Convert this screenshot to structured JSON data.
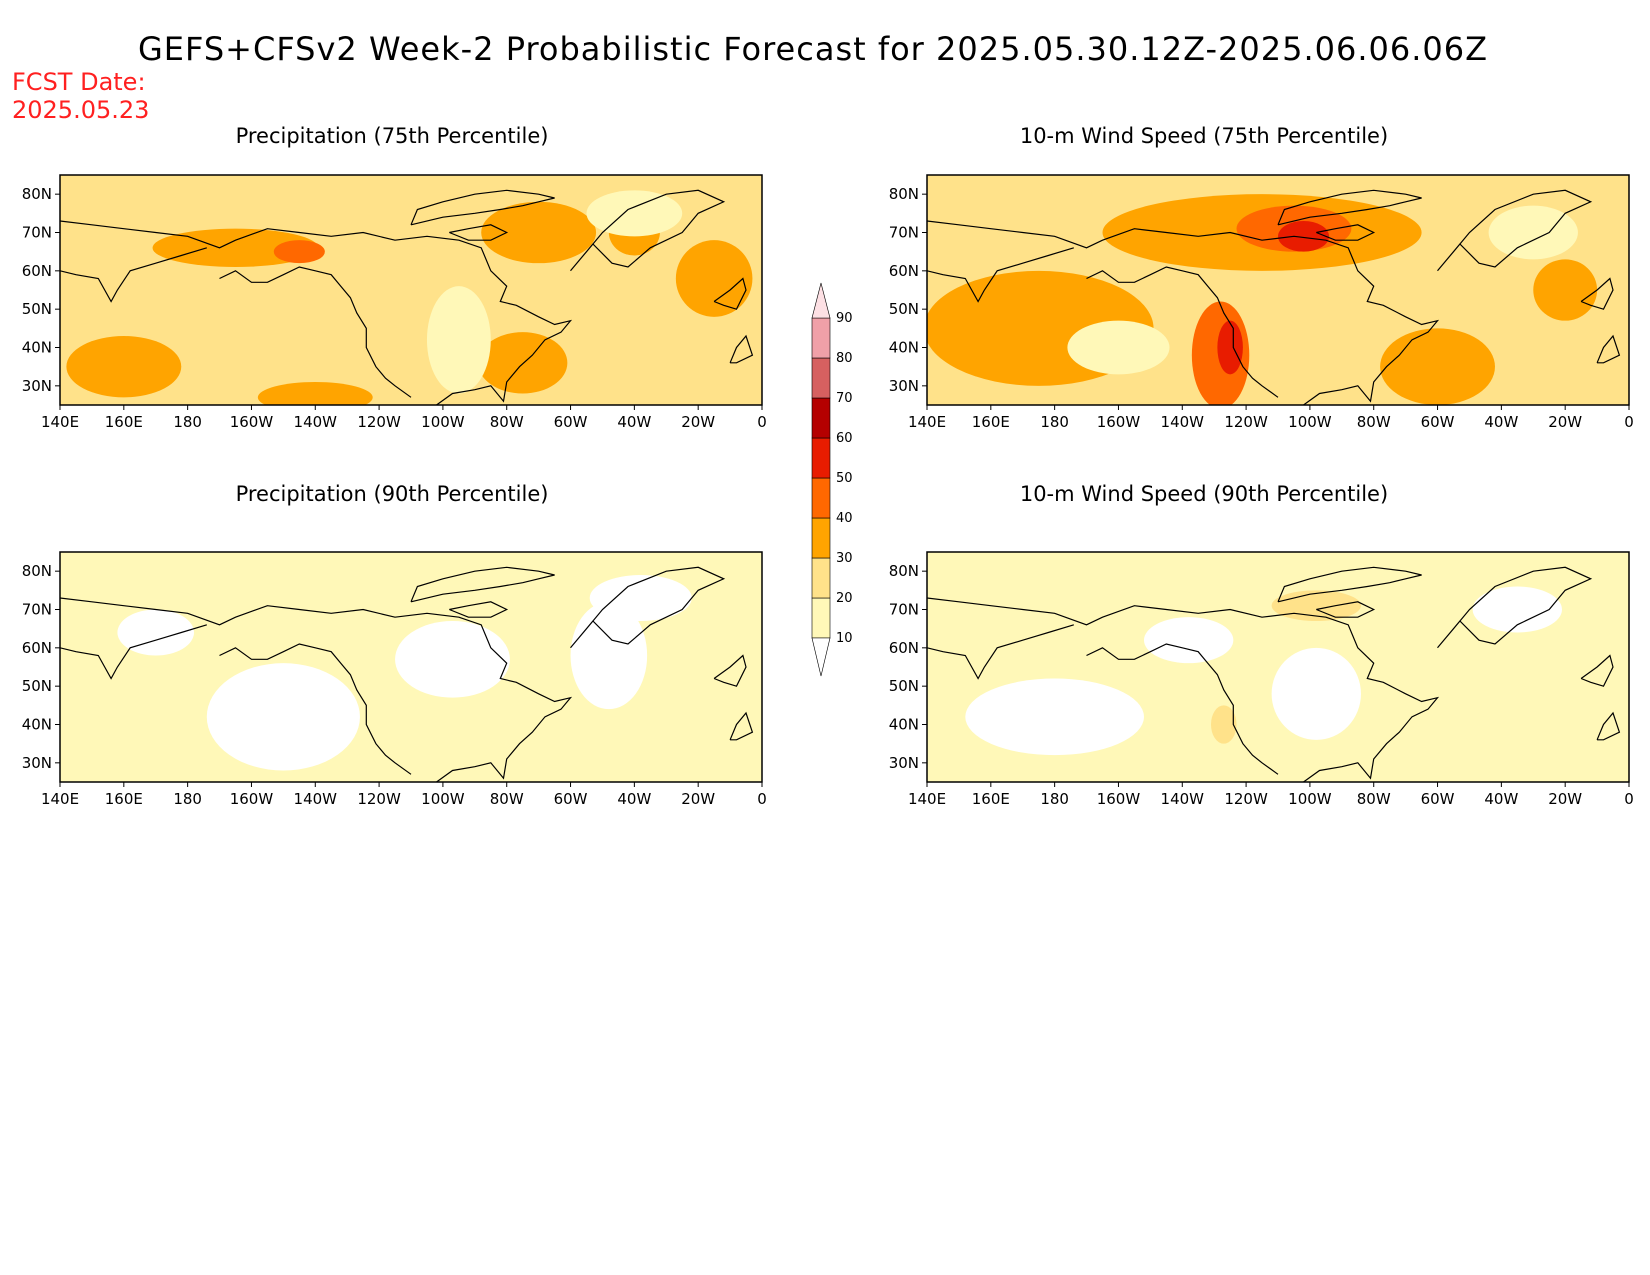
{
  "title": "GEFS+CFSv2 Week-2 Probabilistic Forecast for 2025.05.30.12Z-2025.06.06.06Z",
  "fcst_date_label": "FCST Date:",
  "fcst_date": "2025.05.23",
  "panels": [
    {
      "title": "Precipitation (75th Percentile)",
      "base_level": 20,
      "blobs": [
        {
          "lon": 195,
          "lat": 66,
          "rx": 26,
          "ry": 5,
          "level": 30
        },
        {
          "lon": 215,
          "lat": 65,
          "rx": 8,
          "ry": 3,
          "level": 40
        },
        {
          "lon": 290,
          "lat": 70,
          "rx": 18,
          "ry": 8,
          "level": 30
        },
        {
          "lon": 285,
          "lat": 36,
          "rx": 14,
          "ry": 8,
          "level": 30
        },
        {
          "lon": 345,
          "lat": 58,
          "rx": 12,
          "ry": 10,
          "level": 30
        },
        {
          "lon": 160,
          "lat": 35,
          "rx": 18,
          "ry": 8,
          "level": 30
        },
        {
          "lon": 220,
          "lat": 27,
          "rx": 18,
          "ry": 4,
          "level": 30
        },
        {
          "lon": 320,
          "lat": 70,
          "rx": 8,
          "ry": 6,
          "level": 30
        },
        {
          "lon": 265,
          "lat": 42,
          "rx": 10,
          "ry": 14,
          "level": 10
        },
        {
          "lon": 320,
          "lat": 75,
          "rx": 15,
          "ry": 6,
          "level": 10
        }
      ]
    },
    {
      "title": "10-m Wind Speed (75th Percentile)",
      "base_level": 20,
      "blobs": [
        {
          "lon": 245,
          "lat": 70,
          "rx": 50,
          "ry": 10,
          "level": 30
        },
        {
          "lon": 255,
          "lat": 71,
          "rx": 18,
          "ry": 6,
          "level": 40
        },
        {
          "lon": 258,
          "lat": 69,
          "rx": 8,
          "ry": 4,
          "level": 50
        },
        {
          "lon": 175,
          "lat": 45,
          "rx": 36,
          "ry": 15,
          "level": 30
        },
        {
          "lon": 232,
          "lat": 38,
          "rx": 9,
          "ry": 14,
          "level": 40
        },
        {
          "lon": 235,
          "lat": 40,
          "rx": 4,
          "ry": 7,
          "level": 50
        },
        {
          "lon": 300,
          "lat": 35,
          "rx": 18,
          "ry": 10,
          "level": 30
        },
        {
          "lon": 340,
          "lat": 55,
          "rx": 10,
          "ry": 8,
          "level": 30
        },
        {
          "lon": 200,
          "lat": 40,
          "rx": 16,
          "ry": 7,
          "level": 10
        },
        {
          "lon": 330,
          "lat": 70,
          "rx": 14,
          "ry": 7,
          "level": 10
        }
      ]
    },
    {
      "title": "Precipitation (90th Percentile)",
      "base_level": 10,
      "blobs": [
        {
          "lon": 210,
          "lat": 42,
          "rx": 24,
          "ry": 14,
          "level": 0
        },
        {
          "lon": 263,
          "lat": 57,
          "rx": 18,
          "ry": 10,
          "level": 0
        },
        {
          "lon": 312,
          "lat": 58,
          "rx": 12,
          "ry": 14,
          "level": 0
        },
        {
          "lon": 170,
          "lat": 64,
          "rx": 12,
          "ry": 6,
          "level": 0
        },
        {
          "lon": 322,
          "lat": 73,
          "rx": 16,
          "ry": 6,
          "level": 0
        }
      ]
    },
    {
      "title": "10-m Wind Speed (90th Percentile)",
      "base_level": 10,
      "blobs": [
        {
          "lon": 180,
          "lat": 42,
          "rx": 28,
          "ry": 10,
          "level": 0
        },
        {
          "lon": 262,
          "lat": 48,
          "rx": 14,
          "ry": 12,
          "level": 0
        },
        {
          "lon": 222,
          "lat": 62,
          "rx": 14,
          "ry": 6,
          "level": 0
        },
        {
          "lon": 325,
          "lat": 70,
          "rx": 14,
          "ry": 6,
          "level": 0
        },
        {
          "lon": 262,
          "lat": 71,
          "rx": 14,
          "ry": 4,
          "level": 20
        },
        {
          "lon": 233,
          "lat": 40,
          "rx": 4,
          "ry": 5,
          "level": 20
        }
      ]
    }
  ],
  "x_ticks": [
    "140E",
    "160E",
    "180",
    "160W",
    "140W",
    "120W",
    "100W",
    "80W",
    "60W",
    "40W",
    "20W",
    "0"
  ],
  "y_ticks": [
    "30N",
    "40N",
    "50N",
    "60N",
    "70N",
    "80N"
  ],
  "colorbar": {
    "levels": [
      10,
      20,
      30,
      40,
      50,
      60,
      70,
      80,
      90
    ],
    "colors": [
      "#fff8b8",
      "#ffe28a",
      "#ffa400",
      "#ff6800",
      "#e81c00",
      "#b40000",
      "#d66060",
      "#f0a0a8",
      "#fde0e4"
    ]
  }
}
